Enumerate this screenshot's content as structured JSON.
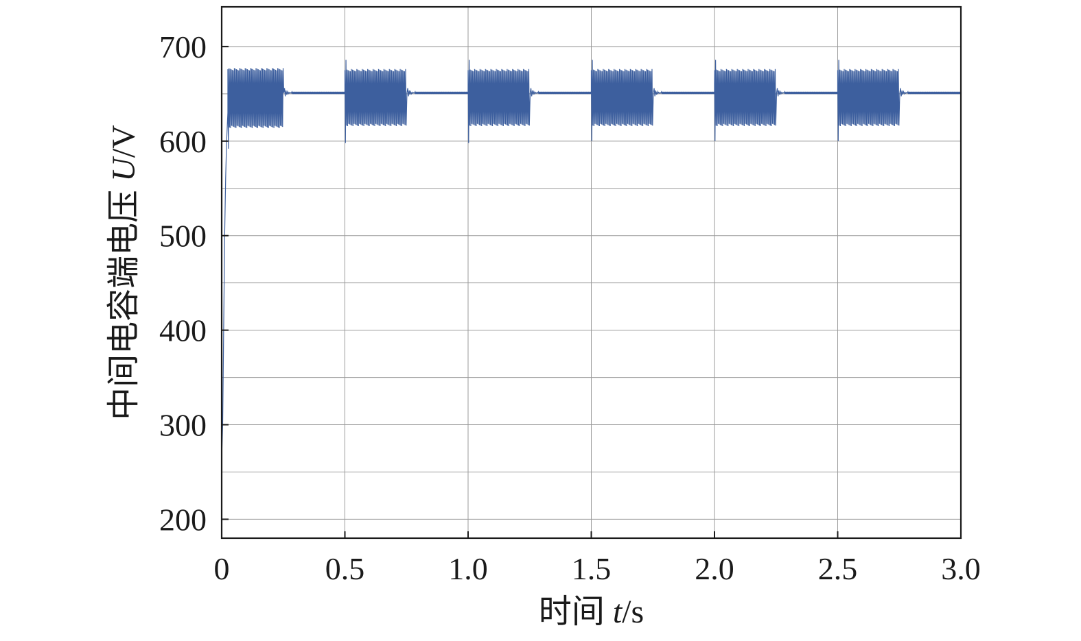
{
  "chart_data": {
    "type": "line",
    "title": "",
    "xlabel": {
      "prefix": "时间 ",
      "var": "t",
      "unit": "/s"
    },
    "ylabel": {
      "prefix": "中间电容端电压 ",
      "var": "U",
      "unit": "/V"
    },
    "xlim": [
      0,
      3.0
    ],
    "ylim": [
      180,
      742
    ],
    "x_ticks": [
      0,
      0.5,
      1.0,
      1.5,
      2.0,
      2.5,
      3.0
    ],
    "x_tick_labels": [
      "0",
      "0.5",
      "1.0",
      "1.5",
      "2.0",
      "2.5",
      "3.0"
    ],
    "y_ticks": [
      200,
      300,
      400,
      500,
      600,
      700
    ],
    "y_tick_labels": [
      "200",
      "300",
      "400",
      "500",
      "600",
      "700"
    ],
    "y_grid_minor": [
      250,
      350,
      450,
      550,
      650
    ],
    "grid": true,
    "colors": {
      "line": "#3d5f9e",
      "grid": "#9a9a9a",
      "axis": "#1a1a1a"
    },
    "series": [
      {
        "startup": [
          [
            0.0,
            265
          ],
          [
            0.004,
            300
          ],
          [
            0.008,
            400
          ],
          [
            0.012,
            500
          ],
          [
            0.016,
            560
          ],
          [
            0.02,
            600
          ],
          [
            0.025,
            630
          ]
        ],
        "steady_value": 651,
        "segments": [
          {
            "start": 0.025,
            "end": 0.25,
            "upper": 676,
            "lower": 615,
            "spike_max": 677,
            "spike_min": 592
          },
          {
            "start": 0.5,
            "end": 0.75,
            "upper": 675,
            "lower": 617,
            "spike_max": 686,
            "spike_min": 598
          },
          {
            "start": 1.0,
            "end": 1.25,
            "upper": 675,
            "lower": 617,
            "spike_max": 686,
            "spike_min": 598
          },
          {
            "start": 1.5,
            "end": 1.75,
            "upper": 675,
            "lower": 617,
            "spike_max": 686,
            "spike_min": 600
          },
          {
            "start": 2.0,
            "end": 2.25,
            "upper": 675,
            "lower": 617,
            "spike_max": 686,
            "spike_min": 600
          },
          {
            "start": 2.5,
            "end": 2.75,
            "upper": 675,
            "lower": 617,
            "spike_max": 686,
            "spike_min": 600
          }
        ]
      }
    ]
  }
}
